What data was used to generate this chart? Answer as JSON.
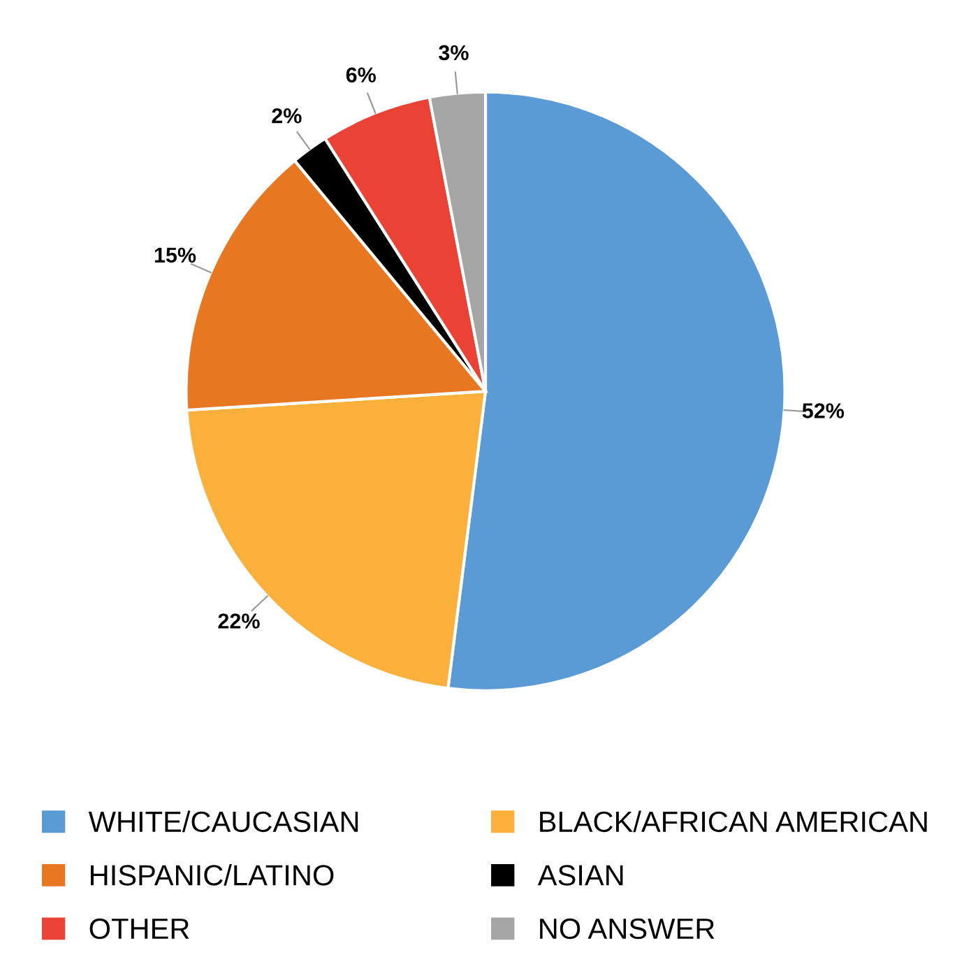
{
  "chart_data": {
    "type": "pie",
    "categories": [
      "WHITE/CAUCASIAN",
      "BLACK/AFRICAN AMERICAN",
      "HISPANIC/LATINO",
      "ASIAN",
      "OTHER",
      "NO ANSWER"
    ],
    "values": [
      52,
      22,
      15,
      2,
      6,
      3
    ],
    "value_labels": [
      "52%",
      "22%",
      "15%",
      "2%",
      "6%",
      "3%"
    ],
    "colors": [
      "#5b9bd5",
      "#fbb03b",
      "#e87722",
      "#000000",
      "#ea4335",
      "#a5a5a5"
    ],
    "legend": "bottom"
  }
}
